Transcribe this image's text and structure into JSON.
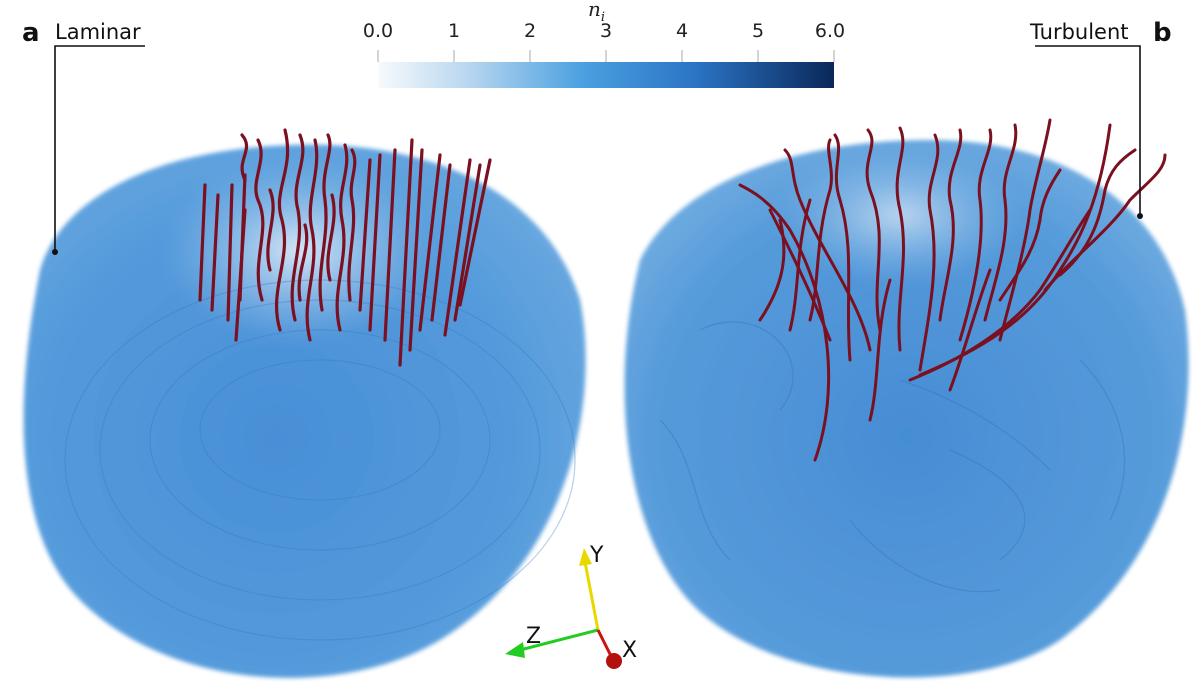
{
  "panels": [
    {
      "letter": "a",
      "label": "Laminar"
    },
    {
      "letter": "b",
      "label": "Turbulent"
    }
  ],
  "colorbar": {
    "title": "n",
    "title_subscript": "i",
    "ticks": [
      "0.0",
      "1",
      "2",
      "3",
      "4",
      "5",
      "6.0"
    ],
    "range": [
      0,
      6
    ],
    "colors": [
      "#f4f8fc",
      "#a9cdeb",
      "#4aa0e0",
      "#2a6fc0",
      "#0b2a5c"
    ]
  },
  "axes_triad": {
    "x_label": "X",
    "y_label": "Y",
    "z_label": "Z",
    "x_color": "#cc1111",
    "y_color": "#e8d800",
    "z_color": "#22cc22"
  },
  "colors": {
    "volume_fill": "#4a93d8",
    "field_lines": "#7a1020"
  }
}
